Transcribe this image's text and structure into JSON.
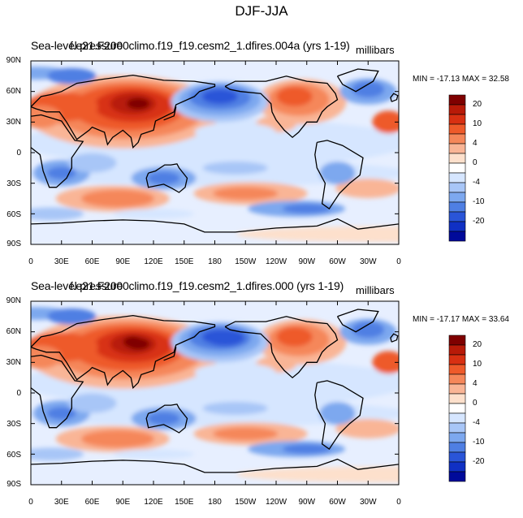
{
  "title": "DJF-JJA",
  "panels": [
    {
      "id": "top",
      "variable_name": "Sea-level pressure",
      "case_name": "f.e21.F2000climo.f19_f19.cesm2_1.dfires.004a (yrs 1-19)",
      "units": "millibars",
      "minmax": "MIN = -17.13 MAX =  32.58"
    },
    {
      "id": "bottom",
      "variable_name": "Sea-level pressure",
      "case_name": "f.e21.F2000climo.f19_f19.cesm2_1.dfires.000 (yrs 1-19)",
      "units": "millibars",
      "minmax": "MIN = -17.17 MAX =  33.64"
    }
  ],
  "lat_labels": [
    "90N",
    "60N",
    "30N",
    "0",
    "30S",
    "60S",
    "90S"
  ],
  "lon_labels": [
    "0",
    "30E",
    "60E",
    "90E",
    "120E",
    "150E",
    "180",
    "150W",
    "120W",
    "90W",
    "60W",
    "30W",
    "0"
  ],
  "colorbar": {
    "labels": [
      "20",
      "10",
      "4",
      "0",
      "-4",
      "-10",
      "-20"
    ],
    "colors": [
      "#7f0000",
      "#b81a08",
      "#d83012",
      "#ee5a2a",
      "#f5875a",
      "#f9b596",
      "#fde0cc",
      "#ffffff",
      "#d6e6ff",
      "#a8c6f7",
      "#7da8ef",
      "#4f7fe3",
      "#2a55d8",
      "#1030c4",
      "#000a9a"
    ]
  },
  "map_colors": {
    "ocean_base": "#e7efff",
    "weak_pos": "#fde0cc",
    "pos1": "#f9b596",
    "pos2": "#f5875a",
    "pos3": "#ee5a2a",
    "pos4": "#d83012",
    "pos5": "#b81a08",
    "pos6": "#7f0000",
    "weak_neg": "#d6e6ff",
    "neg1": "#a8c6f7",
    "neg2": "#7da8ef",
    "neg3": "#4f7fe3",
    "neg4": "#2a55d8",
    "neg5": "#1030c4"
  }
}
